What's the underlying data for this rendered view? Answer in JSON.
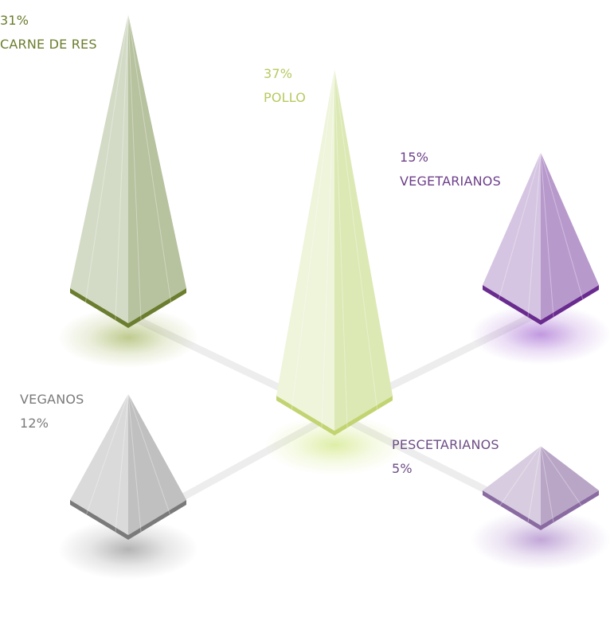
{
  "chart_data": {
    "type": "3d-pyramid",
    "unit": "%",
    "items": [
      {
        "key": "carne",
        "name": "CARNE DE RES",
        "percent_label": "31%",
        "value": 31,
        "color": "#6b7d2e",
        "face_light": "#d3dbc6",
        "face_dark": "#b7c29f",
        "rim": "#6b7d2e",
        "glow": "#8aa033"
      },
      {
        "key": "pollo",
        "name": "POLLO",
        "percent_label": "37%",
        "value": 37,
        "color": "#b8c95f",
        "face_light": "#eef5db",
        "face_dark": "#dce9b4",
        "rim": "#c2d471",
        "glow": "#c4e060"
      },
      {
        "key": "vegetarianos",
        "name": "VEGETARIANOS",
        "percent_label": "15%",
        "value": 15,
        "color": "#6d3f8b",
        "face_light": "#d5c5e2",
        "face_dark": "#b899cc",
        "rim": "#6a2b8f",
        "glow": "#8f45c6"
      },
      {
        "key": "veganos",
        "name": "VEGANOS",
        "percent_label": "12%",
        "value": 12,
        "color": "#7a7a7a",
        "face_light": "#dadada",
        "face_dark": "#c0c0c0",
        "rim": "#7a7a7a",
        "glow": "#777777"
      },
      {
        "key": "pescetarianos",
        "name": "PESCETARIANOS",
        "percent_label": "5%",
        "value": 5,
        "color": "#6d4d86",
        "face_light": "#d8cde0",
        "face_dark": "#b9a6c7",
        "rim": "#8a6ba1",
        "glow": "#9060b8"
      }
    ]
  }
}
